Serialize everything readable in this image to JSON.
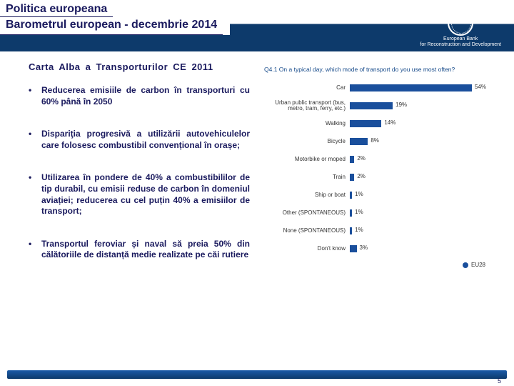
{
  "header": {
    "title1": "Politica europeana",
    "title2": "Barometrul european - decembrie 2014",
    "logo": {
      "line1": "European Bank",
      "line2": "for Reconstruction and Development"
    }
  },
  "left": {
    "subtitle": "Carta Alba a Transporturilor CE 2011",
    "bullets": [
      "Reducerea emisiile de carbon în transporturi cu 60% până în 2050",
      "Dispariţia progresivă a utilizării autovehiculelor care folosesc combustibil convențional în orașe;",
      "Utilizarea în pondere de 40% a combustibililor de tip durabil, cu emisii reduse de carbon în domeniul aviației; reducerea cu cel puțin 40% a emisiilor de transport;",
      "Transportul feroviar și naval să preia 50% din călătoriile de distanță medie realizate pe căi rutiere"
    ]
  },
  "chart": {
    "type": "bar",
    "title": "Q4.1 On a typical day, which mode of transport do you use most often?",
    "max": 60,
    "bar_color": "#1a4f9c",
    "background_color": "#ffffff",
    "label_fontsize": 8,
    "rows": [
      {
        "label": "Car",
        "value": 54
      },
      {
        "label": "Urban public transport (bus, metro, tram, ferry, etc.)",
        "value": 19
      },
      {
        "label": "Walking",
        "value": 14
      },
      {
        "label": "Bicycle",
        "value": 8
      },
      {
        "label": "Motorbike or moped",
        "value": 2
      },
      {
        "label": "Train",
        "value": 2
      },
      {
        "label": "Ship or boat",
        "value": 1
      },
      {
        "label": "Other (SPONTANEOUS)",
        "value": 1
      },
      {
        "label": "None (SPONTANEOUS)",
        "value": 1
      },
      {
        "label": "Don't know",
        "value": 3
      }
    ],
    "legend": "EU28"
  },
  "page_number": "5"
}
